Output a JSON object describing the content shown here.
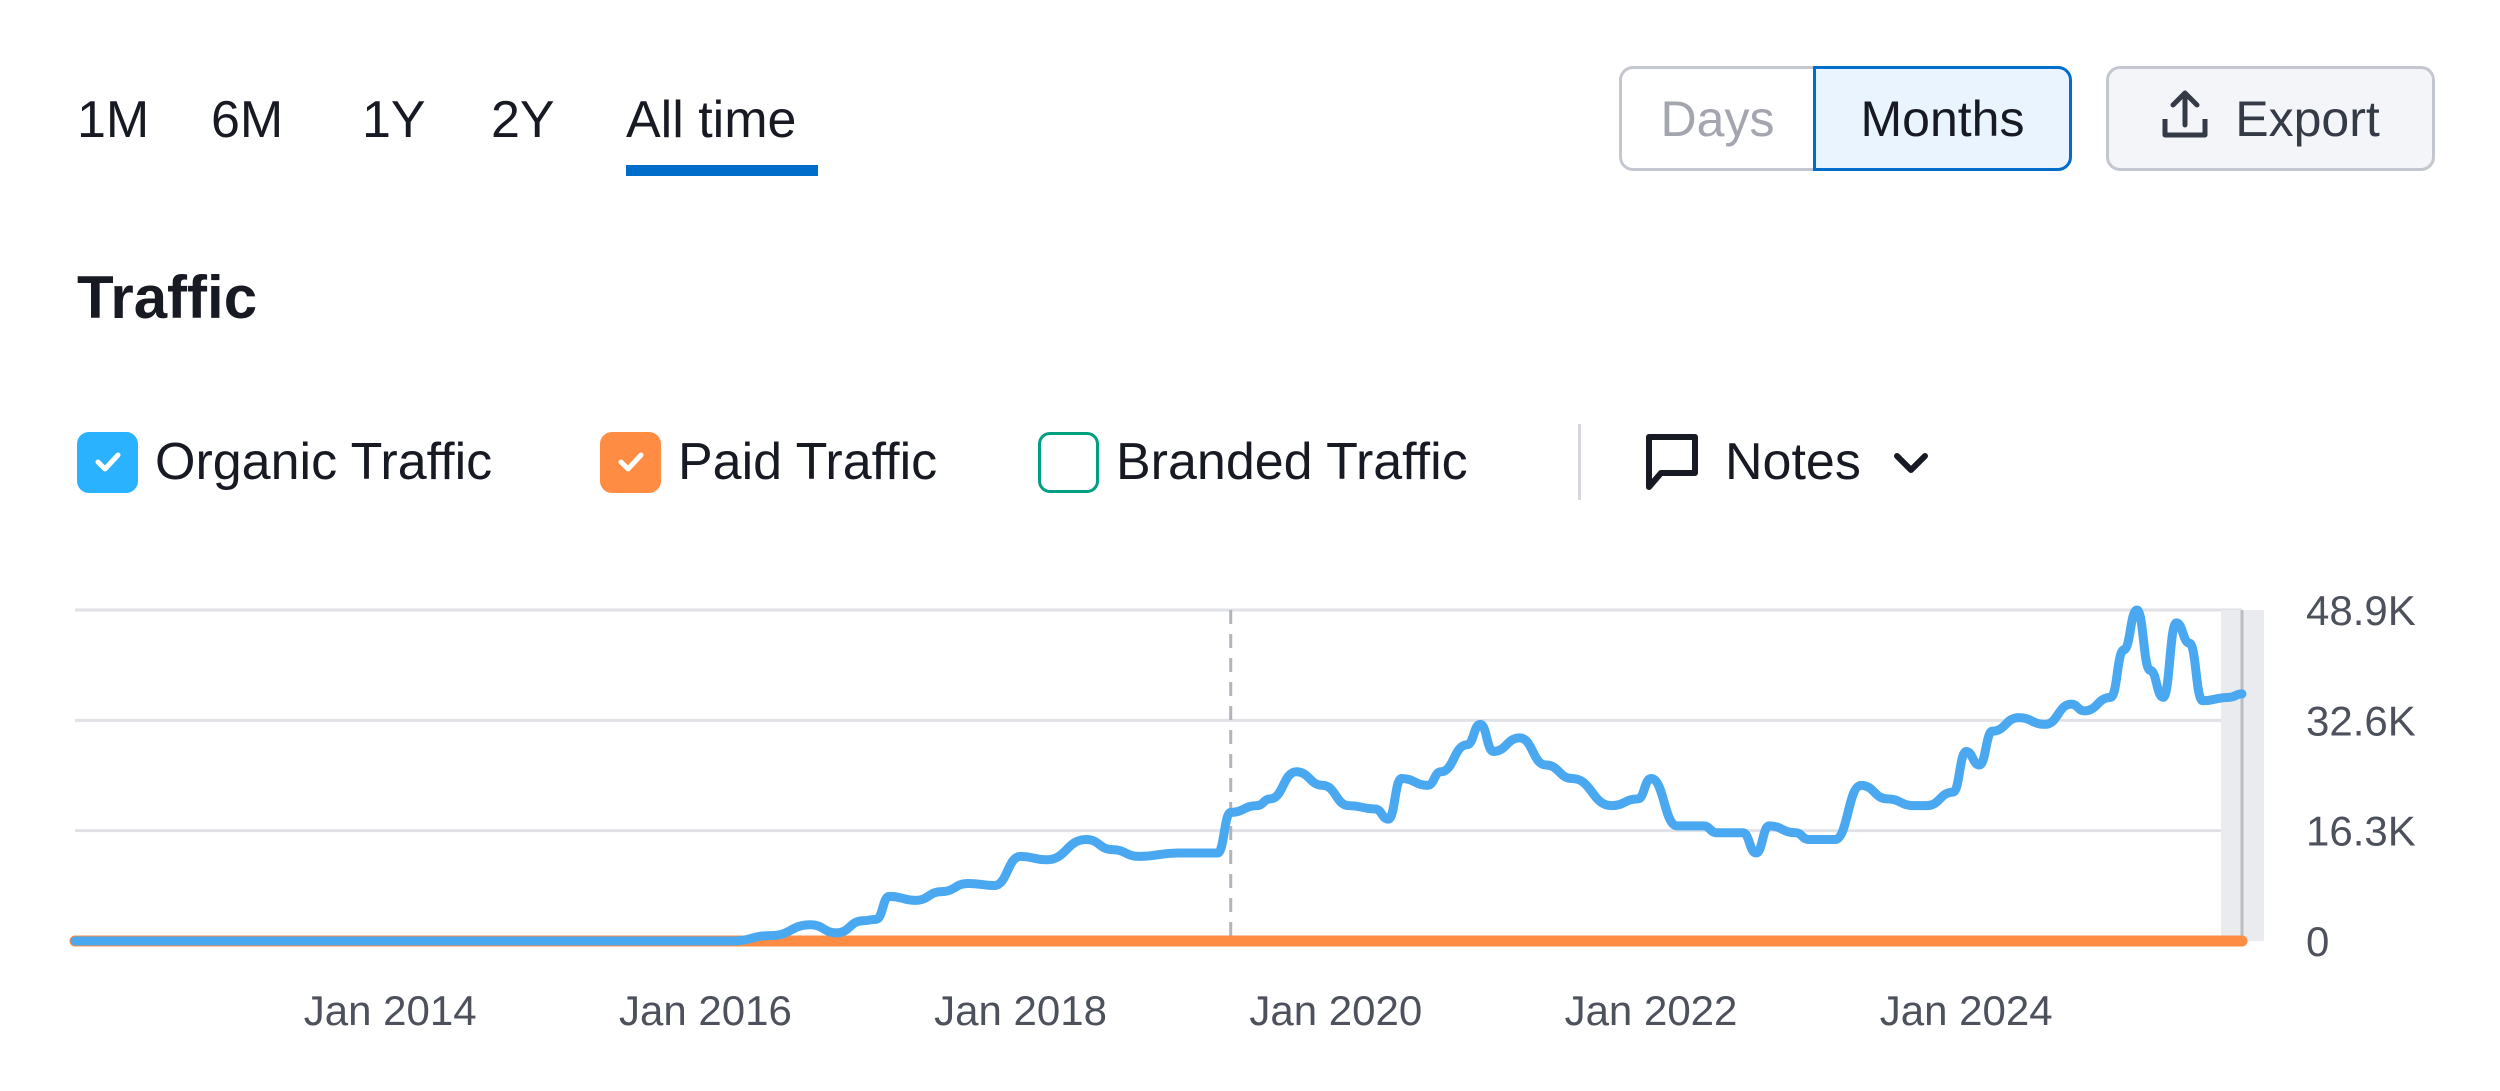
{
  "range_tabs": [
    {
      "label": "1M",
      "active": false
    },
    {
      "label": "6M",
      "active": false
    },
    {
      "label": "1Y",
      "active": false
    },
    {
      "label": "2Y",
      "active": false
    },
    {
      "label": "All time",
      "active": true
    }
  ],
  "granularity": {
    "days_label": "Days",
    "months_label": "Months",
    "selected": "Months"
  },
  "export": {
    "label": "Export",
    "icon": "upload-icon"
  },
  "section_title": "Traffic",
  "legend": {
    "organic": {
      "label": "Organic Traffic",
      "checked": true,
      "color": "#2bb2ff"
    },
    "paid": {
      "label": "Paid Traffic",
      "checked": true,
      "color": "#ff8c43"
    },
    "branded": {
      "label": "Branded Traffic",
      "checked": false,
      "color": "#009f81"
    },
    "notes": {
      "label": "Notes",
      "icon": "comment-icon"
    }
  },
  "chart_data": {
    "type": "line",
    "x_range": [
      "2012-01",
      "2025-10"
    ],
    "ylim": [
      0,
      48900
    ],
    "yticks": [
      {
        "value": 0,
        "label": "0"
      },
      {
        "value": 16300,
        "label": "16.3K"
      },
      {
        "value": 32600,
        "label": "32.6K"
      },
      {
        "value": 48900,
        "label": "48.9K"
      }
    ],
    "xticks": [
      {
        "date": "2014-01",
        "label": "Jan 2014"
      },
      {
        "date": "2016-01",
        "label": "Jan 2016"
      },
      {
        "date": "2018-01",
        "label": "Jan 2018"
      },
      {
        "date": "2020-01",
        "label": "Jan 2020"
      },
      {
        "date": "2022-01",
        "label": "Jan 2022"
      },
      {
        "date": "2024-01",
        "label": "Jan 2024"
      }
    ],
    "grid": true,
    "marker_line_date": "2019-05",
    "series": [
      {
        "name": "Organic Traffic",
        "color": "#4aa8f0",
        "points": [
          [
            "2012-01",
            0
          ],
          [
            "2016-03",
            0
          ],
          [
            "2016-06",
            800
          ],
          [
            "2016-09",
            2400
          ],
          [
            "2016-11",
            1200
          ],
          [
            "2017-01",
            3000
          ],
          [
            "2017-02",
            3200
          ],
          [
            "2017-03",
            6600
          ],
          [
            "2017-05",
            6000
          ],
          [
            "2017-07",
            7300
          ],
          [
            "2017-09",
            8500
          ],
          [
            "2017-11",
            8200
          ],
          [
            "2018-01",
            12500
          ],
          [
            "2018-03",
            12000
          ],
          [
            "2018-06",
            15000
          ],
          [
            "2018-08",
            13500
          ],
          [
            "2018-10",
            12500
          ],
          [
            "2019-01",
            13000
          ],
          [
            "2019-04",
            13000
          ],
          [
            "2019-05",
            19000
          ],
          [
            "2019-07",
            20000
          ],
          [
            "2019-08",
            21000
          ],
          [
            "2019-10",
            25000
          ],
          [
            "2019-12",
            23000
          ],
          [
            "2020-02",
            20000
          ],
          [
            "2020-04",
            19500
          ],
          [
            "2020-05",
            18000
          ],
          [
            "2020-06",
            24000
          ],
          [
            "2020-08",
            23000
          ],
          [
            "2020-09",
            25000
          ],
          [
            "2020-11",
            29000
          ],
          [
            "2020-12",
            32000
          ],
          [
            "2021-01",
            28000
          ],
          [
            "2021-03",
            30000
          ],
          [
            "2021-05",
            26000
          ],
          [
            "2021-07",
            24000
          ],
          [
            "2021-10",
            20000
          ],
          [
            "2021-12",
            21000
          ],
          [
            "2022-01",
            24000
          ],
          [
            "2022-03",
            17000
          ],
          [
            "2022-05",
            17000
          ],
          [
            "2022-06",
            16000
          ],
          [
            "2022-08",
            16000
          ],
          [
            "2022-09",
            13000
          ],
          [
            "2022-10",
            17000
          ],
          [
            "2022-12",
            16000
          ],
          [
            "2023-01",
            15000
          ],
          [
            "2023-03",
            15000
          ],
          [
            "2023-05",
            23000
          ],
          [
            "2023-07",
            21000
          ],
          [
            "2023-09",
            20000
          ],
          [
            "2023-10",
            20000
          ],
          [
            "2023-12",
            22000
          ],
          [
            "2024-01",
            28000
          ],
          [
            "2024-02",
            26000
          ],
          [
            "2024-03",
            31000
          ],
          [
            "2024-05",
            33000
          ],
          [
            "2024-07",
            32000
          ],
          [
            "2024-09",
            35000
          ],
          [
            "2024-10",
            34000
          ],
          [
            "2024-12",
            36000
          ],
          [
            "2025-01",
            43000
          ],
          [
            "2025-02",
            48900
          ],
          [
            "2025-03",
            40000
          ],
          [
            "2025-04",
            36000
          ],
          [
            "2025-05",
            47000
          ],
          [
            "2025-06",
            44000
          ],
          [
            "2025-07",
            35500
          ],
          [
            "2025-09",
            36000
          ],
          [
            "2025-10",
            36500
          ]
        ]
      },
      {
        "name": "Paid Traffic",
        "color": "#ff8c43",
        "points": [
          [
            "2012-01",
            0
          ],
          [
            "2025-10",
            0
          ]
        ]
      }
    ]
  }
}
